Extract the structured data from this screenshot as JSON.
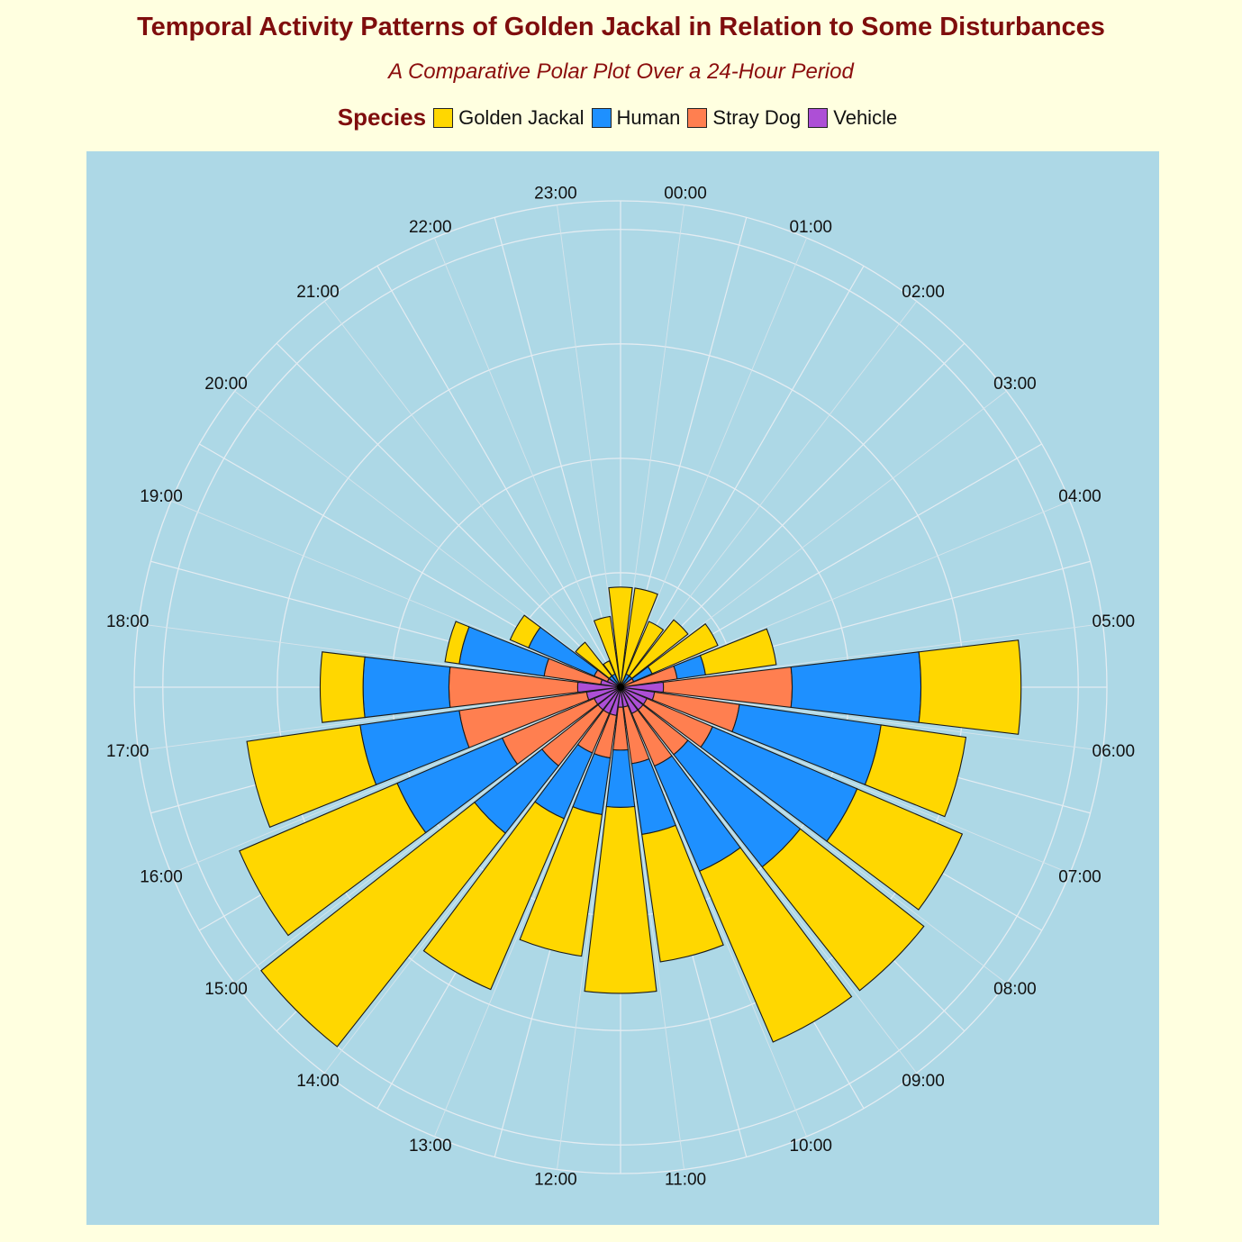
{
  "title": "Temporal Activity Patterns of Golden Jackal in Relation to Some Disturbances",
  "subtitle": "A Comparative Polar Plot Over a 24-Hour Period",
  "legend": {
    "title": "Species",
    "items": [
      {
        "label": "Golden Jackal",
        "color": "#ffd700"
      },
      {
        "label": "Human",
        "color": "#1e90ff"
      },
      {
        "label": "Stray Dog",
        "color": "#ff7f50"
      },
      {
        "label": "Vehicle",
        "color": "#ad4fd6"
      }
    ]
  },
  "chart_data": {
    "type": "bar",
    "coordinate_system": "polar",
    "stacked": true,
    "categories": [
      "00:00",
      "01:00",
      "02:00",
      "03:00",
      "04:00",
      "05:00",
      "06:00",
      "07:00",
      "08:00",
      "09:00",
      "10:00",
      "11:00",
      "12:00",
      "13:00",
      "14:00",
      "15:00",
      "16:00",
      "17:00",
      "18:00",
      "19:00",
      "20:00",
      "21:00",
      "22:00",
      "23:00"
    ],
    "series": [
      {
        "name": "Vehicle",
        "color": "#ad4fd6",
        "values": [
          0,
          0,
          0,
          0,
          0,
          0,
          1.5,
          1.2,
          1.0,
          1.0,
          1.0,
          0.7,
          0.7,
          1.0,
          1.0,
          1.0,
          1.0,
          1.2,
          1.5,
          0.7,
          0.5,
          0,
          0,
          0
        ]
      },
      {
        "name": "Stray Dog",
        "color": "#ff7f50",
        "values": [
          0,
          0,
          0,
          0,
          0.5,
          2.0,
          4.5,
          3.0,
          2.5,
          2.0,
          2.0,
          2.0,
          1.5,
          1.5,
          1.5,
          2.5,
          3.5,
          4.5,
          4.5,
          2.0,
          0.5,
          0,
          0,
          0
        ]
      },
      {
        "name": "Human",
        "color": "#1e90ff",
        "values": [
          0,
          0,
          0.5,
          0.5,
          0.7,
          1.0,
          4.5,
          5.0,
          5.5,
          5.0,
          4.0,
          2.5,
          2.0,
          2.0,
          2.5,
          3.0,
          4.0,
          3.5,
          3.0,
          3.0,
          2.5,
          0.5,
          0.5,
          0
        ]
      },
      {
        "name": "Golden Jackal",
        "color": "#ffd700",
        "values": [
          3.5,
          3.5,
          2.0,
          2.5,
          2.5,
          2.5,
          3.5,
          3.0,
          4.0,
          5.5,
          6.5,
          4.5,
          6.5,
          5.0,
          6.5,
          9.5,
          6.0,
          4.0,
          1.5,
          0.5,
          0.7,
          1.5,
          0.5,
          2.5
        ]
      }
    ],
    "r_max": 17,
    "r_gridlines": [
      4,
      8,
      12,
      16
    ],
    "start_angle": "top",
    "direction": "clockwise",
    "grid": true,
    "legend_position": "top"
  }
}
